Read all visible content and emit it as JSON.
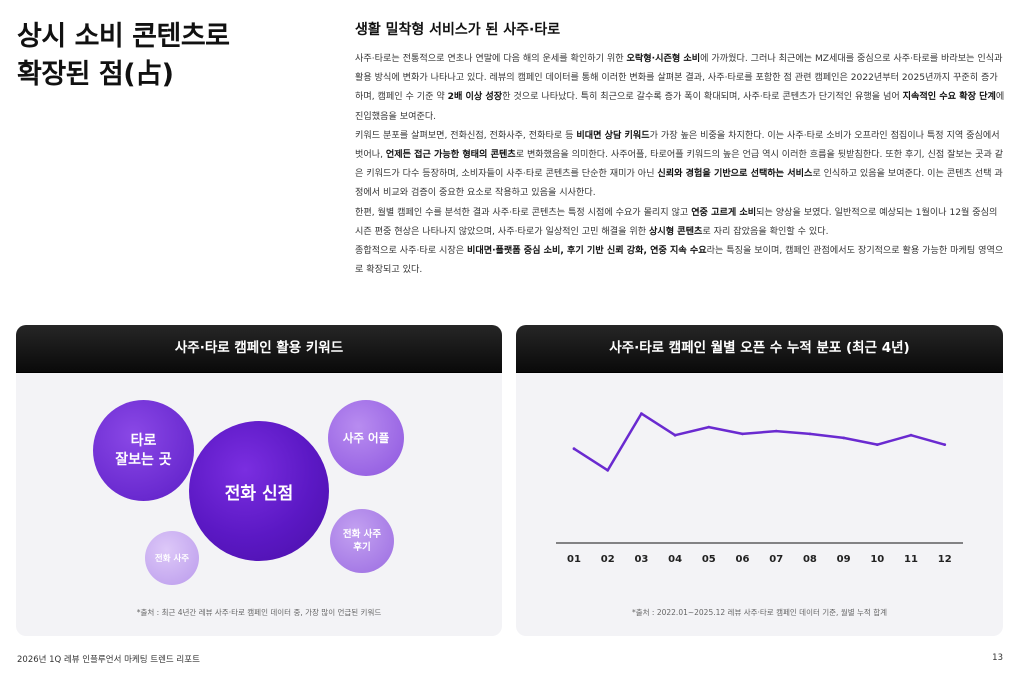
{
  "page": {
    "title": "상시 소비 콘텐츠로\n확장된 점(占)",
    "footer": "2026년 1Q 레뷰 인플루언서 마케팅 트렌드 리포트",
    "page_number": "13"
  },
  "article": {
    "heading": "생활 밀착형 서비스가 된 사주·타로",
    "paragraphs": [
      [
        {
          "t": "사주·타로는 전통적으로 연초나 연말에 다음 해의 운세를 확인하기 위한 "
        },
        {
          "t": "오락형·시즌형 소비",
          "b": true
        },
        {
          "t": "에 가까웠다. 그러나 최근에는 MZ세대를 중심으로 사주·타로를 바라보는 인식과 활용 방식에 변화가 나타나고 있다. 레뷰의 캠페인 데이터를 통해 이러한 변화를 살펴본 결과, 사주·타로를 포함한 점 관련 캠페인은 2022년부터 2025년까지 꾸준히 증가하며, 캠페인 수 기준 약 "
        },
        {
          "t": "2배 이상 성장",
          "b": true
        },
        {
          "t": "한 것으로 나타났다. 특히 최근으로 갈수록 증가 폭이 확대되며, 사주·타로 콘텐츠가 단기적인 유행을 넘어 "
        },
        {
          "t": "지속적인 수요 확장 단계",
          "b": true
        },
        {
          "t": "에 진입했음을 보여준다."
        }
      ],
      [
        {
          "t": "키워드 분포를 살펴보면, 전화신점, 전화사주, 전화타로 등 "
        },
        {
          "t": "비대면 상담 키워드",
          "b": true
        },
        {
          "t": "가 가장 높은 비중을 차지한다. 이는 사주·타로 소비가 오프라인 점집이나 특정 지역 중심에서 벗어나, "
        },
        {
          "t": "언제든 접근 가능한 형태의 콘텐츠",
          "b": true
        },
        {
          "t": "로 변화했음을 의미한다. 사주어플, 타로어플 키워드의 높은 언급 역시 이러한 흐름을 뒷받침한다. 또한 후기, 신점 잘보는 곳과 같은 키워드가 다수 등장하며, 소비자들이 사주·타로 콘텐츠를 단순한 재미가 아닌 "
        },
        {
          "t": "신뢰와 경험을 기반으로 선택하는 서비스",
          "b": true
        },
        {
          "t": "로 인식하고 있음을 보여준다. 이는 콘텐츠 선택 과정에서 비교와 검증이 중요한 요소로 작용하고 있음을 시사한다."
        }
      ],
      [
        {
          "t": "한편, 월별 캠페인 수를 분석한 결과 사주·타로 콘텐츠는 특정 시점에 수요가 몰리지 않고 "
        },
        {
          "t": "연중 고르게 소비",
          "b": true
        },
        {
          "t": "되는 양상을 보였다. 일반적으로 예상되는 1월이나 12월 중심의 시즌 편중 현상은 나타나지 않았으며, 사주·타로가 일상적인 고민 해결을 위한 "
        },
        {
          "t": "상시형 콘텐츠",
          "b": true
        },
        {
          "t": "로 자리 잡았음을 확인할 수 있다."
        }
      ],
      [
        {
          "t": "종합적으로 사주·타로 시장은 "
        },
        {
          "t": "비대면·플랫폼 중심 소비, 후기 기반 신뢰 강화, 연중 지속 수요",
          "b": true
        },
        {
          "t": "라는 특징을 보이며, 캠페인 관점에서도 장기적으로 활용 가능한 마케팅 영역으로 확장되고 있다."
        }
      ]
    ]
  },
  "keyword_card": {
    "title": "사주·타로 캠페인 활용 키워드",
    "footnote": "*출처 : 최근 4년간 레뷰 사주·타로 캠페인 데이터 중, 가장 많이 언급된 키워드",
    "bubbles": {
      "big": "전화 신점",
      "taro": "타로\n잘보는 곳",
      "app": "사주 어플",
      "review": "전화 사주\n후기",
      "sasu": "전화 사주"
    }
  },
  "monthly_card": {
    "title": "사주·타로 캠페인 월별 오픈 수 누적 분포 (최근 4년)",
    "footnote": "*출처 : 2022.01~2025.12 레뷰 사주·타로 캠페인 데이터 기준, 월별 누적 합계"
  },
  "chart_data": {
    "type": "line",
    "title": "사주·타로 캠페인 월별 오픈 수 누적 분포 (최근 4년)",
    "categories": [
      "01",
      "02",
      "03",
      "04",
      "05",
      "06",
      "07",
      "08",
      "09",
      "10",
      "11",
      "12"
    ],
    "values": [
      58,
      42,
      84,
      68,
      74,
      69,
      71,
      69,
      66,
      61,
      68,
      61
    ],
    "ylim": [
      0,
      100
    ],
    "grid": false,
    "line_color": "#6a2ad0"
  }
}
